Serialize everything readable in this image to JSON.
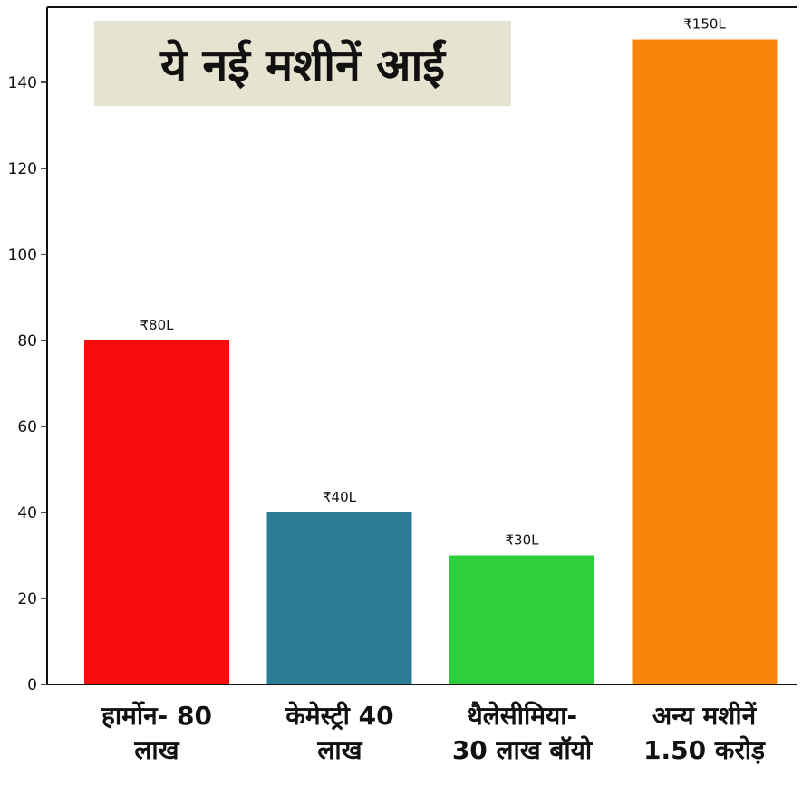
{
  "chart_data": {
    "type": "bar",
    "title": "ये नई मशीनें आईं",
    "categories": [
      [
        "हार्मोन- 80",
        "लाख"
      ],
      [
        "केमेस्ट्री 40",
        "लाख"
      ],
      [
        "थैलेसीमिया-",
        "30 लाख बॉयो"
      ],
      [
        "अन्य मशीनें",
        "1.50 करोड़"
      ]
    ],
    "values": [
      80,
      40,
      30,
      150
    ],
    "data_labels": [
      "₹80L",
      "₹40L",
      "₹30L",
      "₹150L"
    ],
    "colors": [
      "#f80d0d",
      "#2e7d98",
      "#2ecf3c",
      "#fb8509"
    ],
    "yticks": [
      0,
      20,
      40,
      60,
      80,
      100,
      120,
      140
    ],
    "ylim": [
      0,
      150
    ],
    "xlabel": "",
    "ylabel": "",
    "grid": false
  }
}
